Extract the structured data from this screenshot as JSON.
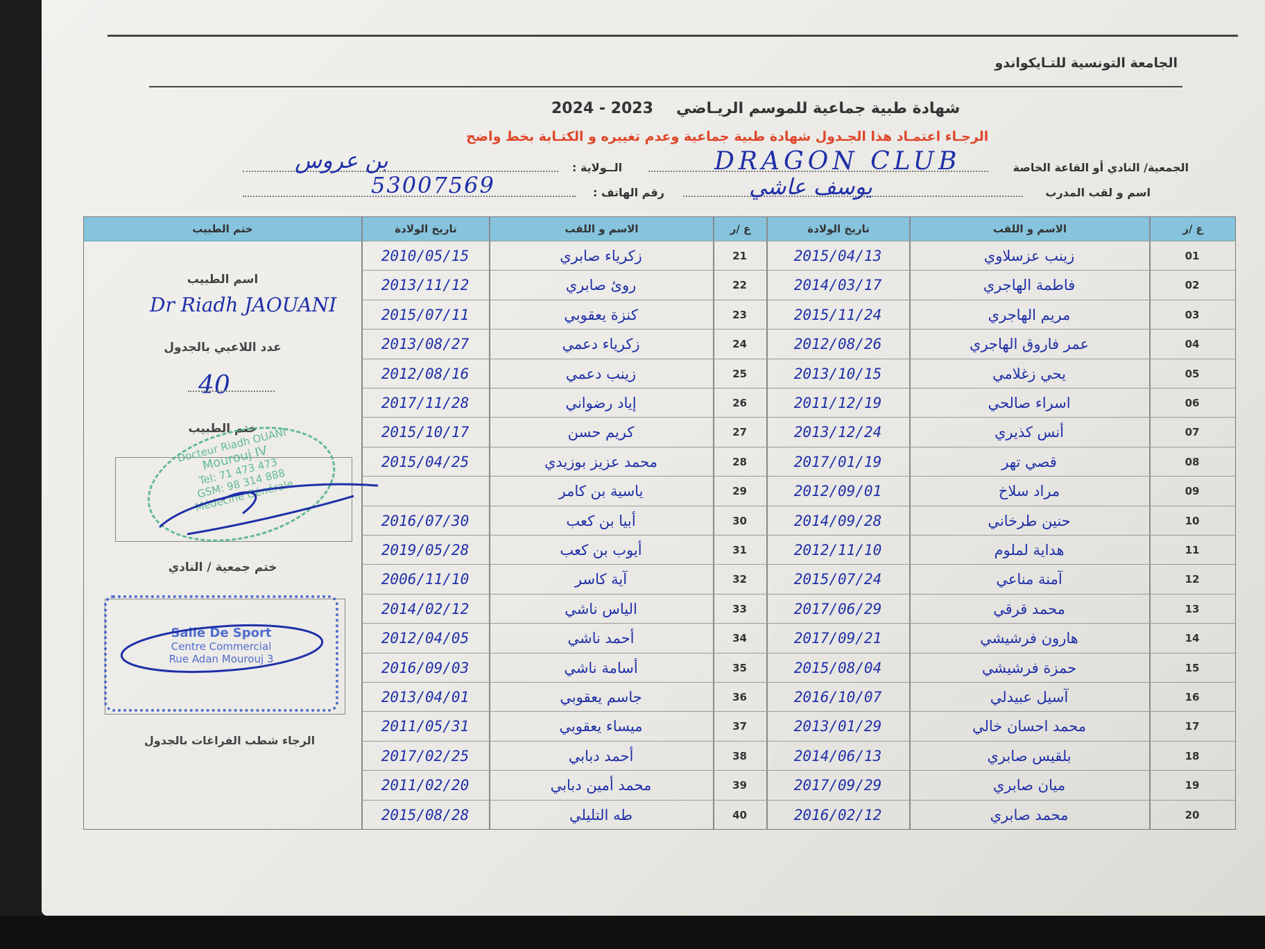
{
  "header": {
    "federation": "الجامعة التونسية للتـايكواندو",
    "title": "شهادة طبية جماعية  للموسم الريـاضي",
    "season": "2024  -  2023",
    "warning": "الرجـاء اعتمـاد هذا الجـدول  شهادة طبية جماعية وعدم تغييره و الكتـابة بخط واضح"
  },
  "fields": {
    "club_label": "الجمعية/ النادي أو القاعة الخاصة",
    "club_value": "DRAGON CLUB",
    "state_label": "الــولاية :",
    "state_value": "بن عروس",
    "coach_label": "اسم و لقب المدرب",
    "coach_value": "يوسف عاشي",
    "phone_label": "رقم الهاتف :",
    "phone_value": "53007569"
  },
  "table": {
    "headers": {
      "num": "ع /ر",
      "name": "الاسم و اللقب",
      "dob": "تاريخ الولادة",
      "doctor_stamp": "ختم الطبيب"
    },
    "rows_right": [
      {
        "num": "01",
        "name": "زينب عزسلاوي",
        "dob": "2015/04/13"
      },
      {
        "num": "02",
        "name": "فاطمة الهاجري",
        "dob": "2014/03/17"
      },
      {
        "num": "03",
        "name": "مريم الهاجري",
        "dob": "2015/11/24"
      },
      {
        "num": "04",
        "name": "عمر فاروق الهاجري",
        "dob": "2012/08/26"
      },
      {
        "num": "05",
        "name": "يحي زغلامي",
        "dob": "2013/10/15"
      },
      {
        "num": "06",
        "name": "اسراء صالحي",
        "dob": "2011/12/19"
      },
      {
        "num": "07",
        "name": "أنس كذيري",
        "dob": "2013/12/24"
      },
      {
        "num": "08",
        "name": "قصي تهر",
        "dob": "2017/01/19"
      },
      {
        "num": "09",
        "name": "مراد سلاخ",
        "dob": "2012/09/01"
      },
      {
        "num": "10",
        "name": "حنين طرخاني",
        "dob": "2014/09/28"
      },
      {
        "num": "11",
        "name": "هداية لملوم",
        "dob": "2012/11/10"
      },
      {
        "num": "12",
        "name": "آمنة مناعي",
        "dob": "2015/07/24"
      },
      {
        "num": "13",
        "name": "محمد قرقي",
        "dob": "2017/06/29"
      },
      {
        "num": "14",
        "name": "هارون فرشيشي",
        "dob": "2017/09/21"
      },
      {
        "num": "15",
        "name": "حمزة فرشيشي",
        "dob": "2015/08/04"
      },
      {
        "num": "16",
        "name": "آسيل عبيدلي",
        "dob": "2016/10/07"
      },
      {
        "num": "17",
        "name": "محمد احسان خالي",
        "dob": "2013/01/29"
      },
      {
        "num": "18",
        "name": "بلقيس صابري",
        "dob": "2014/06/13"
      },
      {
        "num": "19",
        "name": "ميان صابري",
        "dob": "2017/09/29"
      },
      {
        "num": "20",
        "name": "محمد صابري",
        "dob": "2016/02/12"
      }
    ],
    "rows_left": [
      {
        "num": "21",
        "name": "زكرياء صابري",
        "dob": "2010/05/15"
      },
      {
        "num": "22",
        "name": "روئ صابري",
        "dob": "2013/11/12"
      },
      {
        "num": "23",
        "name": "كنزة يعقوبي",
        "dob": "2015/07/11"
      },
      {
        "num": "24",
        "name": "زكرياء دعمي",
        "dob": "2013/08/27"
      },
      {
        "num": "25",
        "name": "زينب دعمي",
        "dob": "2012/08/16"
      },
      {
        "num": "26",
        "name": "إياد رضواني",
        "dob": "2017/11/28"
      },
      {
        "num": "27",
        "name": "كريم حسن",
        "dob": "2015/10/17"
      },
      {
        "num": "28",
        "name": "محمد عزيز بوزيدي",
        "dob": "2015/04/25"
      },
      {
        "num": "29",
        "name": "ياسية بن كامر",
        "dob": ""
      },
      {
        "num": "30",
        "name": "أبيا بن كعب",
        "dob": "2016/07/30"
      },
      {
        "num": "31",
        "name": "أيوب بن كعب",
        "dob": "2019/05/28"
      },
      {
        "num": "32",
        "name": "آية كاسر",
        "dob": "2006/11/10"
      },
      {
        "num": "33",
        "name": "الياس ناشي",
        "dob": "2014/02/12"
      },
      {
        "num": "34",
        "name": "أحمد ناشي",
        "dob": "2012/04/05"
      },
      {
        "num": "35",
        "name": "أسامة ناشي",
        "dob": "2016/09/03"
      },
      {
        "num": "36",
        "name": "جاسم يعقوبي",
        "dob": "2013/04/01"
      },
      {
        "num": "37",
        "name": "ميساء يعقوبي",
        "dob": "2011/05/31"
      },
      {
        "num": "38",
        "name": "أحمد دبابي",
        "dob": "2017/02/25"
      },
      {
        "num": "39",
        "name": "محمد أمين دبابي",
        "dob": "2011/02/20"
      },
      {
        "num": "40",
        "name": "طه التليلي",
        "dob": "2015/08/28"
      }
    ]
  },
  "side": {
    "doctor_name_label": "اسم الطبيب",
    "doctor_name_value": "Dr Riadh JAOUANI",
    "player_count_label": "عدد اللاعبي بالجدول",
    "player_count_value": "40",
    "doctor_stamp_label": "ختم الطبيب",
    "doctor_stamp_lines": [
      "Docteur Riadh OUANI",
      "Mourouj IV",
      "Tel: 71 473 473",
      "GSM: 98 314 888",
      "Médecine Générale"
    ],
    "club_stamp_label": "ختم جمعية / النادي",
    "club_stamp_lines": [
      "Salle De Sport",
      "Centre Commercial",
      "Rue Adan Mourouj 3"
    ],
    "strike_note": "الرجاء شطب  الفراغات بالجدول"
  },
  "colors": {
    "header_blue": "#86c4de",
    "ink": "#1f2fa8",
    "warning_red": "#e0462a",
    "doctor_stamp": "#3fae7a",
    "club_stamp": "#3556c8"
  }
}
